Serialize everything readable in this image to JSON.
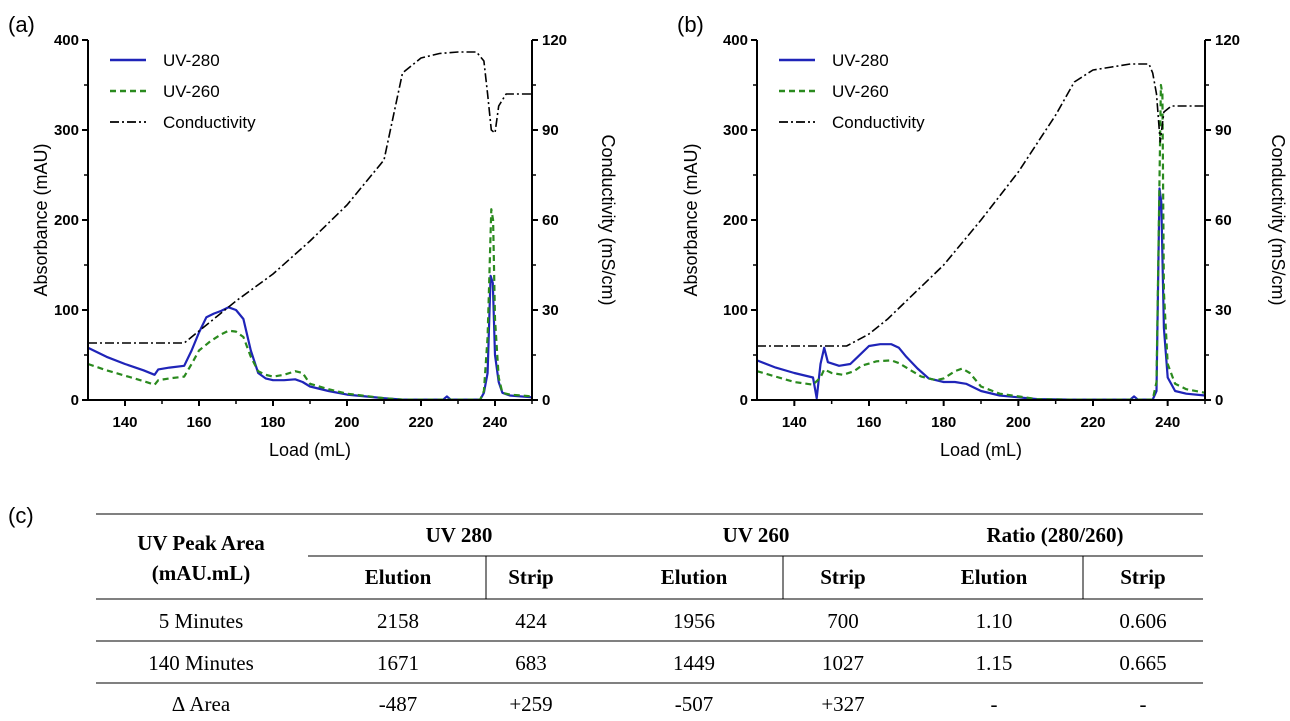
{
  "panel_c_label": "(c)",
  "table": {
    "corner_label_line1": "UV Peak Area",
    "corner_label_line2": "(mAU.mL)",
    "groups": [
      "UV 280",
      "UV 260",
      "Ratio (280/260)"
    ],
    "subheaders": [
      "Elution",
      "Strip",
      "Elution",
      "Strip",
      "Elution",
      "Strip"
    ],
    "rows": [
      {
        "label": "5 Minutes",
        "cells": [
          "2158",
          "424",
          "1956",
          "700",
          "1.10",
          "0.606"
        ]
      },
      {
        "label": "140 Minutes",
        "cells": [
          "1671",
          "683",
          "1449",
          "1027",
          "1.15",
          "0.665"
        ]
      },
      {
        "label": "Δ Area",
        "cells": [
          "-487",
          "+259",
          "-507",
          "+327",
          "-",
          "-"
        ]
      }
    ]
  },
  "chart_data": [
    {
      "type": "line",
      "panel_label": "(a)",
      "xlabel": "Load (mL)",
      "ylabel": "Absorbance (mAU)",
      "y2label": "Conductivity (mS/cm)",
      "xlim": [
        130,
        250
      ],
      "ylim": [
        0,
        400
      ],
      "y2lim": [
        0,
        120
      ],
      "xticks": [
        "140",
        "160",
        "180",
        "200",
        "220",
        "240"
      ],
      "yticks": [
        "0",
        "100",
        "200",
        "300",
        "400"
      ],
      "y2ticks": [
        "0",
        "30",
        "60",
        "90",
        "120"
      ],
      "legend_position": "top-left",
      "series": [
        {
          "name": "UV-280",
          "color": "#1f24b8",
          "dash": "solid",
          "axis": "left",
          "points": [
            [
              130,
              58
            ],
            [
              135,
              48
            ],
            [
              140,
              40
            ],
            [
              145,
              33
            ],
            [
              148,
              28
            ],
            [
              149,
              34
            ],
            [
              152,
              36
            ],
            [
              156,
              38
            ],
            [
              158,
              55
            ],
            [
              160,
              75
            ],
            [
              162,
              92
            ],
            [
              164,
              96
            ],
            [
              166,
              99
            ],
            [
              168,
              103
            ],
            [
              170,
              100
            ],
            [
              172,
              90
            ],
            [
              174,
              55
            ],
            [
              176,
              30
            ],
            [
              178,
              24
            ],
            [
              180,
              22
            ],
            [
              183,
              22
            ],
            [
              186,
              23
            ],
            [
              188,
              20
            ],
            [
              190,
              15
            ],
            [
              195,
              10
            ],
            [
              200,
              6
            ],
            [
              210,
              2
            ],
            [
              215,
              0.5
            ],
            [
              226,
              0.5
            ],
            [
              227,
              4
            ],
            [
              228,
              0.5
            ],
            [
              236,
              0.5
            ],
            [
              237,
              8
            ],
            [
              238,
              30
            ],
            [
              238.8,
              138
            ],
            [
              239.4,
              130
            ],
            [
              240,
              50
            ],
            [
              241,
              20
            ],
            [
              242,
              8
            ],
            [
              244,
              5
            ],
            [
              250,
              3
            ]
          ]
        },
        {
          "name": "UV-260",
          "color": "#2a8a1e",
          "dash": "dashed",
          "axis": "left",
          "points": [
            [
              130,
              40
            ],
            [
              135,
              33
            ],
            [
              140,
              27
            ],
            [
              145,
              21
            ],
            [
              148,
              17
            ],
            [
              149,
              22
            ],
            [
              152,
              24
            ],
            [
              156,
              26
            ],
            [
              158,
              40
            ],
            [
              160,
              55
            ],
            [
              163,
              65
            ],
            [
              166,
              73
            ],
            [
              168,
              77
            ],
            [
              170,
              76
            ],
            [
              172,
              70
            ],
            [
              174,
              48
            ],
            [
              176,
              32
            ],
            [
              178,
              28
            ],
            [
              180,
              26
            ],
            [
              183,
              28
            ],
            [
              186,
              32
            ],
            [
              188,
              30
            ],
            [
              190,
              18
            ],
            [
              195,
              12
            ],
            [
              200,
              7
            ],
            [
              210,
              2
            ],
            [
              215,
              0.5
            ],
            [
              236,
              0.5
            ],
            [
              237,
              10
            ],
            [
              238,
              70
            ],
            [
              239,
              212
            ],
            [
              239.5,
              200
            ],
            [
              240,
              90
            ],
            [
              241,
              25
            ],
            [
              242,
              8
            ],
            [
              244,
              6
            ],
            [
              250,
              4
            ]
          ]
        },
        {
          "name": "Conductivity",
          "color": "#000000",
          "dash": "dashdot",
          "axis": "right",
          "points": [
            [
              130,
              19
            ],
            [
              156,
              19
            ],
            [
              160,
              23
            ],
            [
              165,
              28
            ],
            [
              170,
              33
            ],
            [
              180,
              42
            ],
            [
              190,
              53
            ],
            [
              200,
              65
            ],
            [
              210,
              80
            ],
            [
              215,
              109
            ],
            [
              220,
              114
            ],
            [
              225,
              115.5
            ],
            [
              230,
              116
            ],
            [
              235,
              116
            ],
            [
              237,
              113
            ],
            [
              238,
              102
            ],
            [
              239,
              90
            ],
            [
              240,
              89
            ],
            [
              241,
              98
            ],
            [
              243,
              102
            ],
            [
              250,
              102
            ]
          ]
        }
      ]
    },
    {
      "type": "line",
      "panel_label": "(b)",
      "xlabel": "Load (mL)",
      "ylabel": "Absorbance (mAU)",
      "y2label": "Conductivity (mS/cm)",
      "xlim": [
        130,
        250
      ],
      "ylim": [
        0,
        400
      ],
      "y2lim": [
        0,
        120
      ],
      "xticks": [
        "140",
        "160",
        "180",
        "200",
        "220",
        "240"
      ],
      "yticks": [
        "0",
        "100",
        "200",
        "300",
        "400"
      ],
      "y2ticks": [
        "0",
        "30",
        "60",
        "90",
        "120"
      ],
      "legend_position": "top-left",
      "series": [
        {
          "name": "UV-280",
          "color": "#1f24b8",
          "dash": "solid",
          "axis": "left",
          "points": [
            [
              130,
              44
            ],
            [
              135,
              36
            ],
            [
              140,
              30
            ],
            [
              145,
              25
            ],
            [
              146,
              2
            ],
            [
              147,
              40
            ],
            [
              148,
              58
            ],
            [
              149,
              42
            ],
            [
              152,
              38
            ],
            [
              155,
              40
            ],
            [
              157,
              48
            ],
            [
              160,
              60
            ],
            [
              163,
              62
            ],
            [
              166,
              62
            ],
            [
              168,
              58
            ],
            [
              170,
              48
            ],
            [
              173,
              35
            ],
            [
              176,
              24
            ],
            [
              180,
              20
            ],
            [
              183,
              20
            ],
            [
              186,
              18
            ],
            [
              190,
              10
            ],
            [
              195,
              5
            ],
            [
              200,
              3
            ],
            [
              205,
              1
            ],
            [
              214,
              0.5
            ],
            [
              230,
              0.5
            ],
            [
              231,
              4
            ],
            [
              232,
              0.5
            ],
            [
              236,
              0.5
            ],
            [
              237,
              10
            ],
            [
              237.8,
              235
            ],
            [
              238.3,
              220
            ],
            [
              239,
              80
            ],
            [
              240,
              25
            ],
            [
              242,
              10
            ],
            [
              245,
              7
            ],
            [
              250,
              5
            ]
          ]
        },
        {
          "name": "UV-260",
          "color": "#2a8a1e",
          "dash": "dashed",
          "axis": "left",
          "points": [
            [
              130,
              32
            ],
            [
              135,
              26
            ],
            [
              140,
              20
            ],
            [
              145,
              17
            ],
            [
              147,
              25
            ],
            [
              148,
              34
            ],
            [
              150,
              30
            ],
            [
              153,
              28
            ],
            [
              156,
              32
            ],
            [
              158,
              38
            ],
            [
              162,
              43
            ],
            [
              166,
              44
            ],
            [
              168,
              41
            ],
            [
              170,
              36
            ],
            [
              174,
              26
            ],
            [
              178,
              22
            ],
            [
              180,
              24
            ],
            [
              183,
              32
            ],
            [
              185,
              35
            ],
            [
              187,
              30
            ],
            [
              190,
              15
            ],
            [
              195,
              7
            ],
            [
              200,
              4
            ],
            [
              205,
              1
            ],
            [
              214,
              0.5
            ],
            [
              236,
              0.5
            ],
            [
              237,
              20
            ],
            [
              238.2,
              350
            ],
            [
              238.6,
              340
            ],
            [
              239,
              120
            ],
            [
              240,
              40
            ],
            [
              242,
              18
            ],
            [
              245,
              12
            ],
            [
              250,
              8
            ]
          ]
        },
        {
          "name": "Conductivity",
          "color": "#000000",
          "dash": "dashdot",
          "axis": "right",
          "points": [
            [
              130,
              18
            ],
            [
              154,
              18
            ],
            [
              160,
              22
            ],
            [
              165,
              27
            ],
            [
              170,
              33
            ],
            [
              180,
              45
            ],
            [
              190,
              60
            ],
            [
              200,
              76
            ],
            [
              210,
              95
            ],
            [
              215,
              106
            ],
            [
              220,
              110
            ],
            [
              225,
              111
            ],
            [
              230,
              112
            ],
            [
              235,
              112
            ],
            [
              236,
              109
            ],
            [
              237,
              102
            ],
            [
              238,
              86
            ],
            [
              239,
              96
            ],
            [
              241,
              98
            ],
            [
              250,
              98
            ]
          ]
        }
      ]
    }
  ]
}
